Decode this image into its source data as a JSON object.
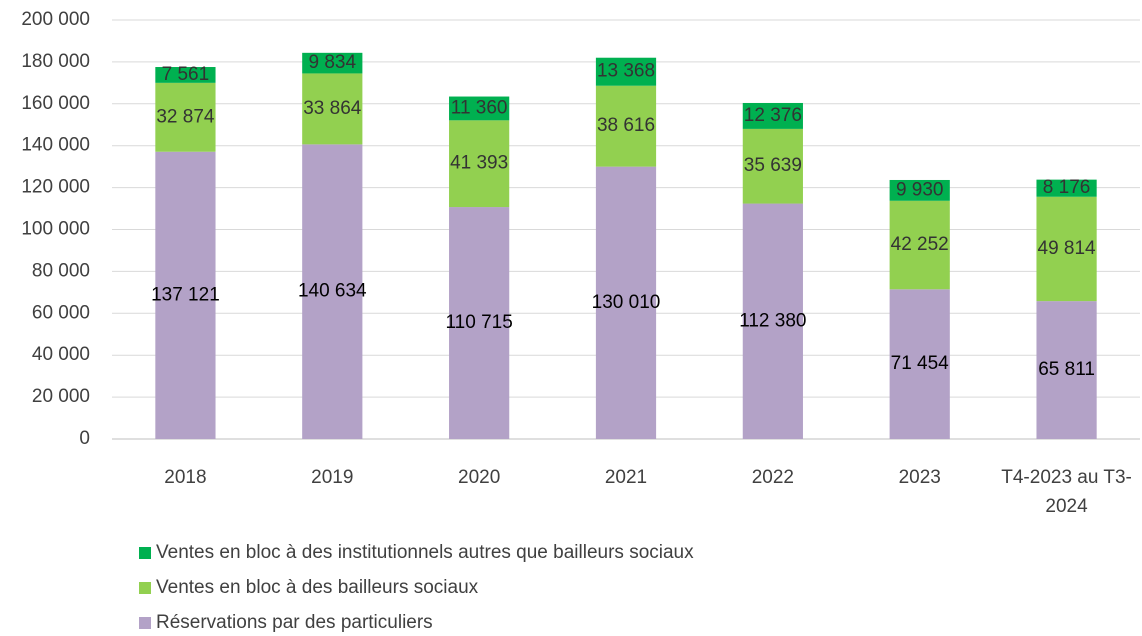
{
  "chart_data": {
    "type": "stacked_bar",
    "categories": [
      "2018",
      "2019",
      "2020",
      "2021",
      "2022",
      "2023",
      "T4-2023 au T3-2024"
    ],
    "series": [
      {
        "name": "Réservations par des particuliers",
        "color": "#b3a2c7",
        "values": [
          137121,
          140634,
          110715,
          130010,
          112380,
          71454,
          65811
        ],
        "value_labels": [
          "137 121",
          "140 634",
          "110 715",
          "130 010",
          "112 380",
          "71 454",
          "65 811"
        ]
      },
      {
        "name": "Ventes en bloc à des bailleurs sociaux",
        "color": "#92d050",
        "values": [
          32874,
          33864,
          41393,
          38616,
          35639,
          42252,
          49814
        ],
        "value_labels": [
          "32 874",
          "33 864",
          "41 393",
          "38 616",
          "35 639",
          "42 252",
          "49 814"
        ]
      },
      {
        "name": "Ventes en bloc à des institutionnels autres que bailleurs sociaux",
        "color": "#00b050",
        "values": [
          7561,
          9834,
          11360,
          13368,
          12376,
          9930,
          8176
        ],
        "value_labels": [
          "7 561",
          "9 834",
          "11 360",
          "13 368",
          "12 376",
          "9 930",
          "8 176"
        ]
      }
    ],
    "ylim": [
      0,
      200000
    ],
    "yticks": [
      0,
      {
        "value": 20000,
        "label": "20 000"
      },
      {
        "value": 40000,
        "label": "40 000"
      },
      {
        "value": 60000,
        "label": "60 000"
      },
      {
        "value": 80000,
        "label": "80 000"
      },
      {
        "value": 100000,
        "label": "100 000"
      },
      {
        "value": 120000,
        "label": "120 000"
      },
      {
        "value": 140000,
        "label": "140 000"
      },
      {
        "value": 160000,
        "label": "160 000"
      },
      {
        "value": 180000,
        "label": "180 000"
      },
      {
        "value": 200000,
        "label": "200 000"
      }
    ],
    "grid": true,
    "legend": "bottom-left"
  }
}
